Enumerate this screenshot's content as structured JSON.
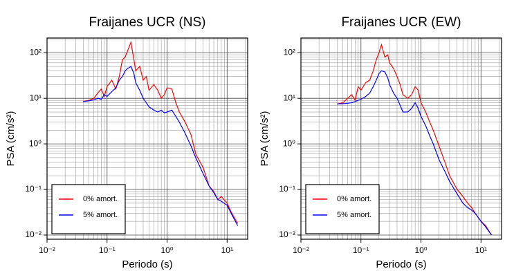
{
  "chart_data": [
    {
      "type": "line",
      "title": "Fraijanes UCR (NS)",
      "xlabel": "Periodo (s)",
      "ylabel": "PSA (cm/s²)",
      "log_x": true,
      "log_y": true,
      "grid": true,
      "legend": "lower left",
      "xlim": [
        0.01,
        22
      ],
      "ylim": [
        0.0081,
        210
      ],
      "xticks": [
        {
          "value": 0.01,
          "label": "10⁻²"
        },
        {
          "value": 0.1,
          "label": "10⁻¹"
        },
        {
          "value": 1,
          "label": "10⁰"
        },
        {
          "value": 10,
          "label": "10¹"
        }
      ],
      "yticks": [
        {
          "value": 0.01,
          "label": "10⁻²"
        },
        {
          "value": 0.1,
          "label": "10⁻¹"
        },
        {
          "value": 1,
          "label": "10⁰"
        },
        {
          "value": 10,
          "label": "10¹"
        },
        {
          "value": 100,
          "label": "10²"
        }
      ],
      "x": [
        0.04,
        0.05,
        0.06,
        0.07,
        0.08,
        0.09,
        0.1,
        0.12,
        0.14,
        0.16,
        0.18,
        0.2,
        0.22,
        0.25,
        0.28,
        0.3,
        0.35,
        0.4,
        0.45,
        0.5,
        0.6,
        0.7,
        0.8,
        0.9,
        1,
        1.2,
        1.4,
        1.6,
        2,
        2.5,
        3,
        4,
        5,
        6,
        7,
        8,
        10,
        12,
        15
      ],
      "series": [
        {
          "name": "0% amort.",
          "color": "#ff0000",
          "values": [
            8.5,
            9,
            10,
            13,
            16,
            11,
            18,
            25,
            16,
            30,
            70,
            80,
            110,
            170,
            70,
            40,
            50,
            25,
            30,
            15,
            20,
            15,
            10,
            12,
            17,
            16,
            8,
            5,
            3,
            1.6,
            0.6,
            0.3,
            0.12,
            0.09,
            0.06,
            0.07,
            0.05,
            0.03,
            0.018
          ]
        },
        {
          "name": "5% amort.",
          "color": "#0000ff",
          "values": [
            8.5,
            8.8,
            9.2,
            10,
            9.5,
            12,
            11,
            14,
            17,
            25,
            30,
            40,
            45,
            50,
            35,
            22,
            15,
            10,
            8,
            6.5,
            5.5,
            5,
            5.5,
            4.8,
            5,
            5.5,
            4,
            3,
            1.7,
            0.9,
            0.5,
            0.22,
            0.12,
            0.085,
            0.06,
            0.055,
            0.045,
            0.028,
            0.016
          ]
        }
      ]
    },
    {
      "type": "line",
      "title": "Fraijanes UCR (EW)",
      "xlabel": "Periodo (s)",
      "ylabel": "PSA (cm/s²)",
      "log_x": true,
      "log_y": true,
      "grid": true,
      "legend": "lower left",
      "xlim": [
        0.01,
        22
      ],
      "ylim": [
        0.0081,
        210
      ],
      "xticks": [
        {
          "value": 0.01,
          "label": "10⁻²"
        },
        {
          "value": 0.1,
          "label": "10⁻¹"
        },
        {
          "value": 1,
          "label": "10⁰"
        },
        {
          "value": 10,
          "label": "10¹"
        }
      ],
      "yticks": [
        {
          "value": 0.01,
          "label": "10⁻²"
        },
        {
          "value": 0.1,
          "label": "10⁻¹"
        },
        {
          "value": 1,
          "label": "10⁰"
        },
        {
          "value": 10,
          "label": "10¹"
        },
        {
          "value": 100,
          "label": "10²"
        }
      ],
      "x": [
        0.04,
        0.05,
        0.06,
        0.07,
        0.08,
        0.09,
        0.1,
        0.12,
        0.14,
        0.16,
        0.18,
        0.2,
        0.22,
        0.25,
        0.28,
        0.3,
        0.35,
        0.4,
        0.45,
        0.5,
        0.6,
        0.7,
        0.8,
        0.9,
        1,
        1.2,
        1.4,
        1.6,
        2,
        2.5,
        3,
        4,
        5,
        6,
        7,
        8,
        10,
        12,
        15
      ],
      "series": [
        {
          "name": "0% amort.",
          "color": "#ff0000",
          "values": [
            7.5,
            8,
            10,
            12,
            9,
            18,
            15,
            22,
            25,
            40,
            70,
            100,
            150,
            80,
            90,
            60,
            45,
            30,
            20,
            12,
            10,
            12,
            18,
            15,
            8,
            5,
            3,
            2,
            0.9,
            0.4,
            0.2,
            0.1,
            0.07,
            0.05,
            0.04,
            0.03,
            0.02,
            0.016,
            0.01
          ]
        },
        {
          "name": "5% amort.",
          "color": "#0000ff",
          "values": [
            7.5,
            7.6,
            7.8,
            8,
            8.5,
            9,
            9.5,
            11,
            13,
            18,
            25,
            35,
            40,
            38,
            28,
            20,
            13,
            10,
            7,
            5,
            5,
            6,
            8,
            6,
            4,
            2.5,
            1.5,
            1,
            0.45,
            0.25,
            0.15,
            0.08,
            0.05,
            0.04,
            0.035,
            0.03,
            0.02,
            0.015,
            0.01
          ]
        }
      ]
    }
  ]
}
